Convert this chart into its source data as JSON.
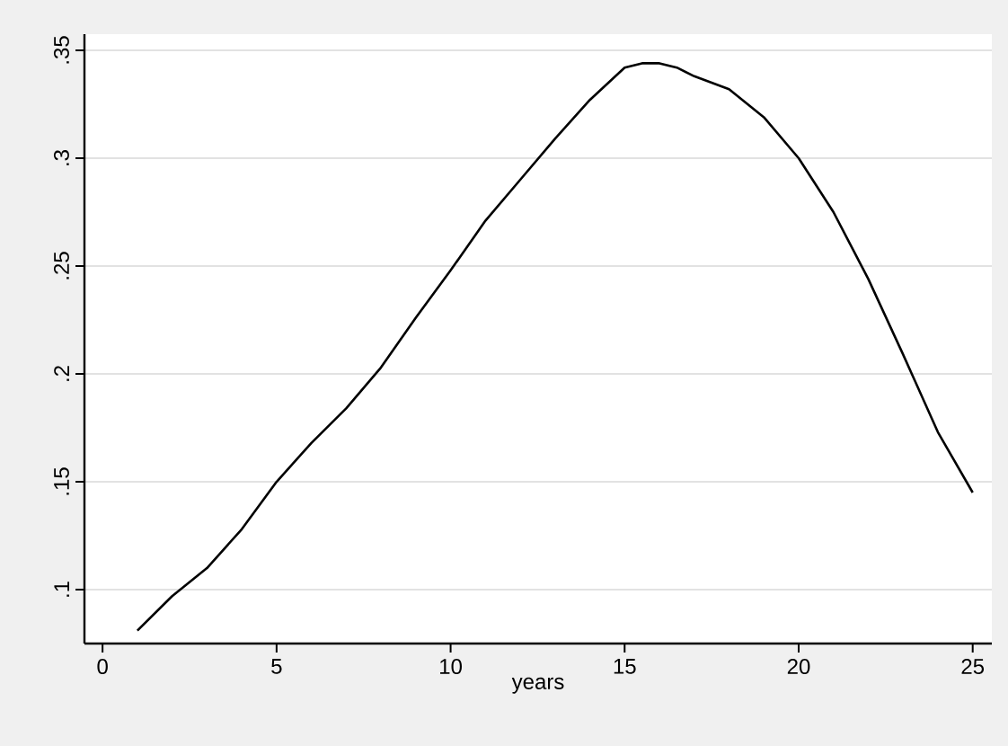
{
  "chart_data": {
    "type": "line",
    "xlabel": "years",
    "x": [
      1,
      2,
      3,
      4,
      5,
      6,
      7,
      8,
      9,
      10,
      11,
      12,
      13,
      14,
      15,
      15.5,
      16,
      16.5,
      17,
      18,
      19,
      20,
      21,
      22,
      23,
      24,
      25
    ],
    "series": [
      {
        "color": "#000000",
        "values": [
          0.081,
          0.097,
          0.11,
          0.128,
          0.15,
          0.168,
          0.184,
          0.203,
          0.226,
          0.248,
          0.271,
          0.29,
          0.309,
          0.327,
          0.342,
          0.344,
          0.344,
          0.342,
          0.338,
          0.332,
          0.319,
          0.3,
          0.275,
          0.244,
          0.209,
          0.173,
          0.145
        ]
      }
    ],
    "xlim": [
      -0.52,
      25.55
    ],
    "ylim": [
      0.075,
      0.3575
    ],
    "xticks": [
      0,
      5,
      10,
      15,
      20,
      25
    ],
    "yticks": [
      {
        "value": 0.1,
        "label": ".1"
      },
      {
        "value": 0.15,
        "label": ".15"
      },
      {
        "value": 0.2,
        "label": ".2"
      },
      {
        "value": 0.25,
        "label": ".25"
      },
      {
        "value": 0.3,
        "label": ".3"
      },
      {
        "value": 0.35,
        "label": ".35"
      }
    ],
    "grid": "y",
    "marker": "none",
    "line_style": "solid"
  }
}
